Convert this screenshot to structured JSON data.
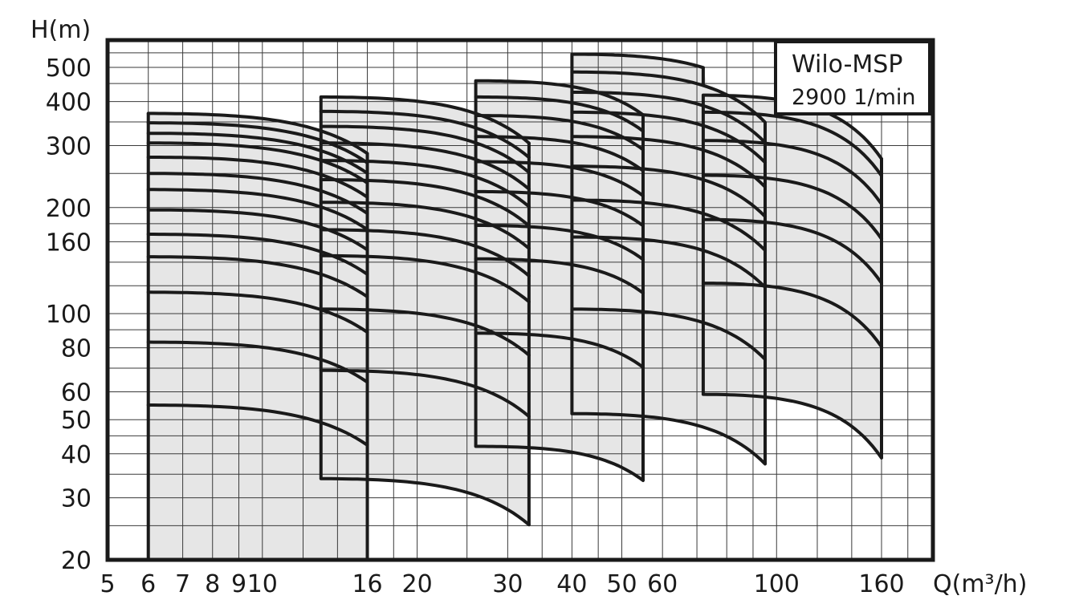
{
  "chart_data": {
    "type": "line",
    "title": "Wilo-MSP",
    "subtitle": "2900 1/min",
    "xlabel": "Q(m³/h)",
    "ylabel": "H(m)",
    "x_scale": "log",
    "y_scale": "log",
    "xlim": [
      5,
      200
    ],
    "ylim": [
      20,
      600
    ],
    "x_ticks": [
      5,
      6,
      7,
      8,
      9,
      10,
      16,
      20,
      30,
      40,
      50,
      60,
      100,
      160
    ],
    "x_tick_labels": [
      "5",
      "6",
      "7",
      "8",
      "9",
      "10",
      "16",
      "20",
      "30",
      "40",
      "50",
      "60",
      "100",
      "160"
    ],
    "y_ticks": [
      20,
      30,
      40,
      50,
      60,
      80,
      100,
      160,
      200,
      300,
      400,
      500
    ],
    "y_tick_labels": [
      "20",
      "30",
      "40",
      "50",
      "60",
      "80",
      "100",
      "160",
      "200",
      "300",
      "400",
      "500"
    ],
    "grid": true,
    "fill_color": "#e6e6e6",
    "line_color": "#1a1a1a",
    "families": [
      {
        "q_range": [
          6,
          16
        ],
        "heads_at_qmin": [
          55,
          83,
          115,
          145,
          168,
          197,
          225,
          250,
          278,
          305,
          325,
          348,
          370
        ],
        "head_ratio_at_qmax": 0.77,
        "fill_to_bottom": true
      },
      {
        "q_range": [
          13,
          33
        ],
        "heads_at_qmin": [
          34,
          69,
          103,
          146,
          173,
          207,
          240,
          272,
          305,
          340,
          375,
          412
        ],
        "head_ratio_at_qmax": 0.74,
        "fill_to_bottom": false
      },
      {
        "q_range": [
          26,
          55
        ],
        "heads_at_qmin": [
          42,
          88,
          143,
          178,
          222,
          270,
          318,
          365,
          412,
          458
        ],
        "head_ratio_at_qmax": 0.8,
        "fill_to_bottom": false
      },
      {
        "q_range": [
          40,
          95
        ],
        "heads_at_qmin": [
          52,
          103,
          165,
          210,
          262,
          318,
          373,
          425,
          485,
          545
        ],
        "head_ratio_at_qmax": 0.72,
        "fill_to_bottom": false,
        "upper_curve_end_q": 72
      },
      {
        "q_range": [
          72,
          160
        ],
        "heads_at_qmin": [
          59,
          122,
          185,
          247,
          310,
          373,
          417
        ],
        "head_ratio_at_qmax": 0.66,
        "fill_to_bottom": false
      }
    ]
  }
}
